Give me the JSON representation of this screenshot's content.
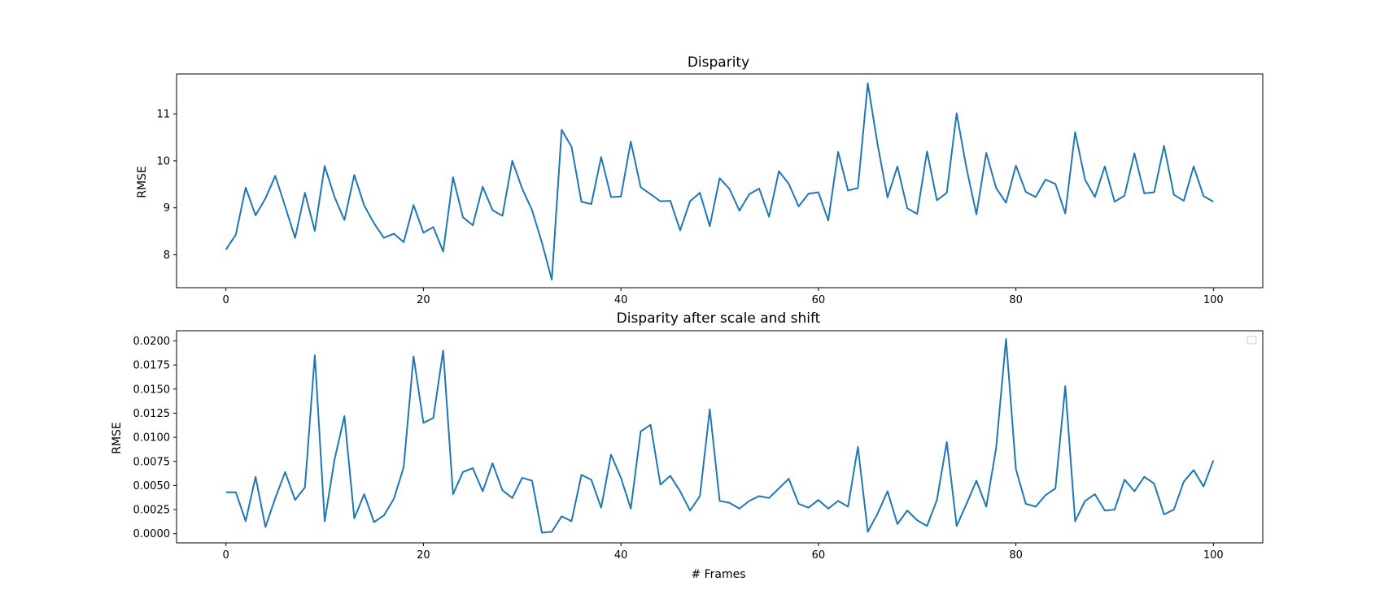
{
  "chart_data": [
    {
      "type": "line",
      "title": "Disparity",
      "xlabel": "",
      "ylabel": "RMSE",
      "xlim": [
        -5,
        105
      ],
      "ylim": [
        7.3,
        11.85
      ],
      "xticks": [
        0,
        20,
        40,
        60,
        80,
        100
      ],
      "yticks": [
        8,
        9,
        10,
        11
      ],
      "yticklabels": [
        "8",
        "9",
        "10",
        "11"
      ],
      "grid": false,
      "color": "#1f77b4",
      "x_start": 0,
      "x_step": 1,
      "values": [
        8.11,
        8.43,
        9.43,
        8.84,
        9.2,
        9.68,
        9.03,
        8.36,
        9.32,
        8.51,
        9.89,
        9.23,
        8.74,
        9.7,
        9.05,
        8.67,
        8.36,
        8.45,
        8.27,
        9.06,
        8.47,
        8.59,
        8.07,
        9.65,
        8.8,
        8.63,
        9.45,
        8.95,
        8.83,
        10.0,
        9.41,
        8.95,
        8.26,
        7.47,
        10.66,
        10.3,
        9.13,
        9.08,
        10.08,
        9.23,
        9.24,
        10.41,
        9.44,
        9.29,
        9.14,
        9.15,
        8.52,
        9.14,
        9.32,
        8.61,
        9.63,
        9.4,
        8.94,
        9.29,
        9.41,
        8.81,
        9.78,
        9.51,
        9.03,
        9.3,
        9.33,
        8.73,
        10.19,
        9.37,
        9.42,
        11.65,
        10.34,
        9.22,
        9.88,
        8.99,
        8.87,
        10.2,
        9.16,
        9.32,
        11.01,
        9.84,
        8.86,
        10.17,
        9.42,
        9.11,
        9.9,
        9.34,
        9.23,
        9.6,
        9.51,
        8.88,
        10.61,
        9.6,
        9.23,
        9.88,
        9.13,
        9.26,
        10.16,
        9.31,
        9.33,
        10.32,
        9.28,
        9.15,
        9.88,
        9.25,
        9.13
      ]
    },
    {
      "type": "line",
      "title": "Disparity after scale and shift",
      "xlabel": "# Frames",
      "ylabel": "RMSE",
      "xlim": [
        -5,
        105
      ],
      "ylim": [
        -0.00095,
        0.02105
      ],
      "xticks": [
        0,
        20,
        40,
        60,
        80,
        100
      ],
      "yticks": [
        0,
        0.0025,
        0.005,
        0.0075,
        0.01,
        0.0125,
        0.015,
        0.0175,
        0.02
      ],
      "yticklabels": [
        "0.0000",
        "0.0025",
        "0.0050",
        "0.0075",
        "0.0100",
        "0.0125",
        "0.0150",
        "0.0175",
        "0.0200"
      ],
      "grid": false,
      "legend": "upper right (empty)",
      "color": "#1f77b4",
      "x_start": 0,
      "x_step": 1,
      "values": [
        0.0043,
        0.0043,
        0.0013,
        0.0059,
        0.0007,
        0.0037,
        0.0064,
        0.0035,
        0.0048,
        0.0185,
        0.0013,
        0.0077,
        0.0122,
        0.0016,
        0.0041,
        0.0012,
        0.0019,
        0.0036,
        0.0069,
        0.0184,
        0.0115,
        0.012,
        0.019,
        0.0041,
        0.0064,
        0.0068,
        0.0044,
        0.0073,
        0.0045,
        0.0037,
        0.0058,
        0.0055,
        0.0001,
        0.0002,
        0.0018,
        0.0013,
        0.0061,
        0.0056,
        0.0027,
        0.0082,
        0.0058,
        0.0026,
        0.0106,
        0.0113,
        0.0051,
        0.006,
        0.0044,
        0.0024,
        0.0039,
        0.0129,
        0.0034,
        0.0032,
        0.0026,
        0.0034,
        0.0039,
        0.0037,
        0.0047,
        0.0057,
        0.0031,
        0.0027,
        0.0035,
        0.0026,
        0.0034,
        0.0028,
        0.009,
        0.0002,
        0.0021,
        0.0044,
        0.001,
        0.0024,
        0.0014,
        0.0008,
        0.0035,
        0.0095,
        0.0008,
        0.0031,
        0.0055,
        0.0028,
        0.0089,
        0.0202,
        0.0067,
        0.0031,
        0.0028,
        0.004,
        0.0047,
        0.0153,
        0.0013,
        0.0034,
        0.0041,
        0.0024,
        0.0025,
        0.0056,
        0.0044,
        0.0059,
        0.0052,
        0.002,
        0.0025,
        0.0054,
        0.0066,
        0.0049,
        0.0076
      ]
    }
  ]
}
